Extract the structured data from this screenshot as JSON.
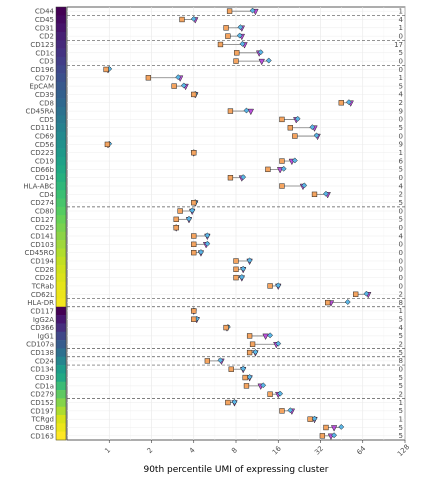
{
  "chart_data": {
    "type": "dumbbell",
    "xlabel": "90th percentile UMI of expressing cluster",
    "xscale": "log2",
    "xlim": [
      0.5,
      128
    ],
    "xticks": [
      1,
      2,
      4,
      8,
      16,
      32,
      64,
      128
    ],
    "grid": true,
    "legend": "none",
    "colors": {
      "orange": "#f4a460",
      "blue": "#5ab4e5",
      "purple": "#b84fd8",
      "connector": "#7a7a7a",
      "dashed": "#555555"
    },
    "markers": {
      "orange": "square",
      "blue": "diamond",
      "purple": "triangle-down"
    },
    "rows": [
      {
        "label": "CD44",
        "color": "#440154",
        "count": "1",
        "v": [
          7.2,
          10.5,
          11.0
        ]
      },
      {
        "label": "CD45",
        "color": "#44095f",
        "count": "4",
        "v": [
          3.3,
          4.0,
          4.1
        ]
      },
      {
        "label": "CD31",
        "color": "#46136a",
        "count": "1",
        "v": [
          6.8,
          8.6,
          8.8
        ]
      },
      {
        "label": "CD2",
        "color": "#461f73",
        "count": "0",
        "v": [
          7.0,
          8.5,
          8.8
        ]
      },
      {
        "label": "CD123",
        "color": "#462a7b",
        "count": "17",
        "v": [
          6.2,
          8.9,
          9.2
        ]
      },
      {
        "label": "CD1c",
        "color": "#443382",
        "count": "5",
        "v": [
          8.1,
          12.0,
          11.7
        ]
      },
      {
        "label": "CD3",
        "color": "#423d87",
        "count": "0",
        "v": [
          8.0,
          13.7,
          12.2
        ]
      },
      {
        "label": "CD196",
        "color": "#3f478a",
        "count": "0",
        "v": [
          0.95,
          1.0,
          0.98
        ]
      },
      {
        "label": "CD70",
        "color": "#3b508c",
        "count": "1",
        "v": [
          1.9,
          3.1,
          3.2
        ]
      },
      {
        "label": "EpCAM",
        "color": "#37588c",
        "count": "5",
        "v": [
          2.9,
          3.4,
          3.5
        ]
      },
      {
        "label": "CD39",
        "color": "#33608d",
        "count": "4",
        "v": [
          4.0,
          4.1,
          4.1
        ]
      },
      {
        "label": "CD8",
        "color": "#2f688e",
        "count": "2",
        "v": [
          45.0,
          51.0,
          52.5
        ]
      },
      {
        "label": "CD45RA",
        "color": "#2c718e",
        "count": "9",
        "v": [
          7.3,
          9.5,
          10.2
        ]
      },
      {
        "label": "CD5",
        "color": "#29798e",
        "count": "0",
        "v": [
          17.0,
          22.0,
          21.5
        ]
      },
      {
        "label": "CD11b",
        "color": "#26818e",
        "count": "5",
        "v": [
          19.5,
          28.0,
          29.0
        ]
      },
      {
        "label": "CD69",
        "color": "#23898e",
        "count": "0",
        "v": [
          21.0,
          30.0,
          30.5
        ]
      },
      {
        "label": "CD56",
        "color": "#21918c",
        "count": "9",
        "v": [
          0.97,
          1.0,
          0.98
        ]
      },
      {
        "label": "CD223",
        "color": "#1f998a",
        "count": "1",
        "v": [
          4.0,
          4.0,
          4.0
        ]
      },
      {
        "label": "CD19",
        "color": "#1fa188",
        "count": "6",
        "v": [
          17.0,
          21.0,
          20.0
        ]
      },
      {
        "label": "CD66b",
        "color": "#21a884",
        "count": "5",
        "v": [
          13.5,
          17.5,
          16.5
        ]
      },
      {
        "label": "CD14",
        "color": "#26b07f",
        "count": "0",
        "v": [
          7.3,
          9.0,
          8.8
        ]
      },
      {
        "label": "HLA-ABC",
        "color": "#2fb77a",
        "count": "4",
        "v": [
          17.0,
          24.5,
          24.0
        ]
      },
      {
        "label": "CD4",
        "color": "#3bbf73",
        "count": "2",
        "v": [
          29.0,
          35.0,
          36.0
        ]
      },
      {
        "label": "CD274",
        "color": "#48c56b",
        "count": "5",
        "v": [
          4.0,
          4.1,
          4.1
        ]
      },
      {
        "label": "CD80",
        "color": "#55cc62",
        "count": "0",
        "v": [
          3.2,
          3.9,
          3.9
        ]
      },
      {
        "label": "CD127",
        "color": "#67d157",
        "count": "5",
        "v": [
          3.0,
          3.7,
          3.7
        ]
      },
      {
        "label": "CD25",
        "color": "#7ad24f",
        "count": "0",
        "v": [
          3.0,
          3.0,
          3.0
        ]
      },
      {
        "label": "CD141",
        "color": "#8cd346",
        "count": "4",
        "v": [
          4.0,
          5.0,
          5.0
        ]
      },
      {
        "label": "CD103",
        "color": "#9fd73c",
        "count": "0",
        "v": [
          4.0,
          5.0,
          4.9
        ]
      },
      {
        "label": "CD45RO",
        "color": "#b0dd2f",
        "count": "0",
        "v": [
          4.0,
          4.5,
          4.5
        ]
      },
      {
        "label": "CD194",
        "color": "#c2df23",
        "count": "0",
        "v": [
          8.0,
          10.0,
          10.0
        ]
      },
      {
        "label": "CD28",
        "color": "#d0e11c",
        "count": "0",
        "v": [
          8.0,
          9.0,
          9.0
        ]
      },
      {
        "label": "CD26",
        "color": "#dbe21a",
        "count": "0",
        "v": [
          8.0,
          8.8,
          8.8
        ]
      },
      {
        "label": "TCRab",
        "color": "#e5e419",
        "count": "0",
        "v": [
          14.0,
          16.0,
          16.0
        ]
      },
      {
        "label": "CD62L",
        "color": "#ece51b",
        "count": "2",
        "v": [
          57.0,
          68.0,
          70.0
        ]
      },
      {
        "label": "HLA-DR",
        "color": "#f3e61e",
        "count": "8",
        "v": [
          36.0,
          50.0,
          38.0
        ]
      },
      {
        "label": "CD117",
        "color": "#440154",
        "count": "1",
        "v": [
          4.0,
          4.0,
          4.0
        ]
      },
      {
        "label": "IgG2A",
        "color": "#46166f",
        "count": "5",
        "v": [
          4.0,
          4.2,
          4.2
        ]
      },
      {
        "label": "CD366",
        "color": "#462f7e",
        "count": "4",
        "v": [
          6.8,
          7.0,
          6.9
        ]
      },
      {
        "label": "IgG1",
        "color": "#3f4788",
        "count": "5",
        "v": [
          10.0,
          14.0,
          13.0
        ]
      },
      {
        "label": "CD107a",
        "color": "#365c8d",
        "count": "2",
        "v": [
          10.5,
          16.0,
          15.5
        ]
      },
      {
        "label": "CD138",
        "color": "#2d708e",
        "count": "5",
        "v": [
          10.0,
          11.0,
          11.0
        ]
      },
      {
        "label": "CD24",
        "color": "#25858e",
        "count": "8",
        "v": [
          5.0,
          6.2,
          6.3
        ]
      },
      {
        "label": "CD134",
        "color": "#1e9b8a",
        "count": "0",
        "v": [
          7.4,
          9.0,
          9.0
        ]
      },
      {
        "label": "CD30",
        "color": "#22a884",
        "count": "5",
        "v": [
          9.3,
          10.0,
          10.0
        ]
      },
      {
        "label": "CD1a",
        "color": "#3bbb75",
        "count": "5",
        "v": [
          9.5,
          12.5,
          12.0
        ]
      },
      {
        "label": "CD279",
        "color": "#5ec962",
        "count": "2",
        "v": [
          14.0,
          16.5,
          16.0
        ]
      },
      {
        "label": "CD152",
        "color": "#84d44b",
        "count": "1",
        "v": [
          7.0,
          7.8,
          7.8
        ]
      },
      {
        "label": "CD197",
        "color": "#addc30",
        "count": "5",
        "v": [
          17.0,
          19.5,
          20.0
        ]
      },
      {
        "label": "TCRgd",
        "color": "#d8e219",
        "count": "1",
        "v": [
          27.0,
          29.0,
          29.0
        ]
      },
      {
        "label": "CD86",
        "color": "#ece51b",
        "count": "5",
        "v": [
          35.0,
          45.0,
          40.0
        ]
      },
      {
        "label": "CD163",
        "color": "#fde725",
        "count": "5",
        "v": [
          33.0,
          40.0,
          38.0
        ]
      }
    ],
    "group_breaks_after": [
      "CD44",
      "CD2",
      "CD3",
      "CD274",
      "CD62L",
      "HLA-DR",
      "CD107a",
      "CD138",
      "CD24",
      "CD279"
    ]
  }
}
